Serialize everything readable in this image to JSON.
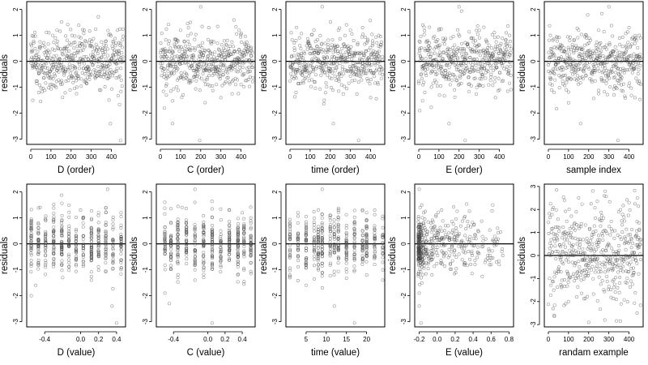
{
  "chart_data": [
    {
      "type": "scatter",
      "xlabel": "D (order)",
      "ylabel": "residuals",
      "xlim": [
        -20,
        470
      ],
      "ylim": [
        -3.2,
        2.3
      ],
      "xticks": [
        0,
        100,
        200,
        300,
        400
      ],
      "xtick_labels": [
        "0",
        "100",
        "200",
        "300",
        "400"
      ],
      "yticks": [
        -3,
        -2,
        -1,
        0,
        1,
        2
      ],
      "ytick_labels": [
        "-3",
        "-2",
        "-1",
        "0",
        "1",
        "2"
      ],
      "reference_line_y": 0,
      "n": 460,
      "x_kind": "index",
      "y_sd": 0.55,
      "series": [
        {
          "x": [
            10,
            40,
            90,
            130,
            205,
            265,
            300,
            395,
            430,
            445
          ],
          "y": [
            -1.5,
            -1.2,
            1.1,
            1.2,
            1.0,
            1.2,
            0.6,
            -2.4,
            1.2,
            -3.05
          ]
        }
      ]
    },
    {
      "type": "scatter",
      "xlabel": "C (order)",
      "ylabel": "residuals",
      "xlim": [
        -20,
        470
      ],
      "ylim": [
        -3.2,
        2.3
      ],
      "xticks": [
        0,
        100,
        200,
        300,
        400
      ],
      "xtick_labels": [
        "0",
        "100",
        "200",
        "300",
        "400"
      ],
      "yticks": [
        -3,
        -2,
        -1,
        0,
        1,
        2
      ],
      "ytick_labels": [
        "-3",
        "-2",
        "-1",
        "0",
        "1",
        "2"
      ],
      "reference_line_y": 0,
      "n": 460,
      "x_kind": "index",
      "y_sd": 0.55,
      "series": [
        {
          "x": [
            20,
            30,
            60,
            100,
            195,
            200,
            240,
            300,
            390,
            440
          ],
          "y": [
            -1.8,
            -1.3,
            -2.4,
            1.2,
            -3.05,
            2.1,
            1.3,
            -1.4,
            1.2,
            -0.4
          ]
        }
      ]
    },
    {
      "type": "scatter",
      "xlabel": "time (order)",
      "ylabel": "residuals",
      "xlim": [
        -20,
        470
      ],
      "ylim": [
        -3.2,
        2.3
      ],
      "xticks": [
        0,
        100,
        200,
        300,
        400
      ],
      "xtick_labels": [
        "0",
        "100",
        "200",
        "300",
        "400"
      ],
      "yticks": [
        -3,
        -2,
        -1,
        0,
        1,
        2
      ],
      "ytick_labels": [
        "-3",
        "-2",
        "-1",
        "0",
        "1",
        "2"
      ],
      "reference_line_y": 0,
      "n": 460,
      "x_kind": "index",
      "y_sd": 0.55,
      "series": [
        {
          "x": [
            30,
            160,
            170,
            215,
            240,
            300,
            340,
            360,
            400,
            440
          ],
          "y": [
            -1.2,
            2.1,
            -1.5,
            -2.4,
            1.2,
            1.2,
            -3.05,
            1.3,
            -1.4,
            1.0
          ]
        }
      ]
    },
    {
      "type": "scatter",
      "xlabel": "E (order)",
      "ylabel": "residuals",
      "xlim": [
        -20,
        470
      ],
      "ylim": [
        -3.2,
        2.3
      ],
      "xticks": [
        0,
        100,
        200,
        300,
        400
      ],
      "xtick_labels": [
        "0",
        "100",
        "200",
        "300",
        "400"
      ],
      "yticks": [
        -3,
        -2,
        -1,
        0,
        1,
        2
      ],
      "ytick_labels": [
        "-3",
        "-2",
        "-1",
        "0",
        "1",
        "2"
      ],
      "reference_line_y": 0,
      "n": 460,
      "x_kind": "index",
      "y_sd": 0.55,
      "series": [
        {
          "x": [
            5,
            20,
            30,
            100,
            150,
            200,
            230,
            300,
            380,
            450
          ],
          "y": [
            -1.9,
            1.4,
            -1.2,
            1.2,
            -2.4,
            2.1,
            -3.05,
            1.2,
            -1.4,
            1.0
          ]
        }
      ]
    },
    {
      "type": "scatter",
      "xlabel": "sample index",
      "ylabel": "residuals",
      "xlim": [
        -20,
        470
      ],
      "ylim": [
        -3.2,
        2.3
      ],
      "xticks": [
        0,
        100,
        200,
        300,
        400
      ],
      "xtick_labels": [
        "0",
        "100",
        "200",
        "300",
        "400"
      ],
      "yticks": [
        -3,
        -2,
        -1,
        0,
        1,
        2
      ],
      "ytick_labels": [
        "-3",
        "-2",
        "-1",
        "0",
        "1",
        "2"
      ],
      "reference_line_y": 0,
      "n": 460,
      "x_kind": "index",
      "y_sd": 0.55,
      "series": [
        {
          "x": [
            10,
            100,
            150,
            160,
            250,
            300,
            345,
            400,
            430,
            450
          ],
          "y": [
            1.0,
            -1.6,
            1.2,
            -2.4,
            1.2,
            2.1,
            -3.05,
            1.3,
            -1.4,
            1.0
          ]
        }
      ]
    },
    {
      "type": "scatter",
      "xlabel": "D (value)",
      "ylabel": "residuals",
      "xlim": [
        -0.6,
        0.5
      ],
      "ylim": [
        -3.2,
        2.3
      ],
      "xticks": [
        -0.4,
        0.0,
        0.2,
        0.4
      ],
      "xtick_labels": [
        "-0.4",
        "0.0",
        "0.2",
        "0.4"
      ],
      "yticks": [
        -3,
        -2,
        -1,
        0,
        1,
        2
      ],
      "ytick_labels": [
        "-3",
        "-2",
        "-1",
        "0",
        "1",
        "2"
      ],
      "reference_line_y": 0,
      "n": 460,
      "x_kind": "discrete",
      "x_levels": [
        -0.55,
        -0.47,
        -0.39,
        -0.3,
        -0.21,
        -0.13,
        -0.05,
        0.03,
        0.12,
        0.2,
        0.28,
        0.36,
        0.45
      ],
      "y_sd": 0.55,
      "series": [
        {
          "x": [
            -0.55,
            -0.5,
            -0.45,
            0.3,
            0.35,
            0.4,
            0.45,
            0.0,
            0.2,
            -0.2
          ],
          "y": [
            -2.0,
            -1.6,
            1.4,
            2.1,
            -2.4,
            -3.05,
            1.2,
            1.3,
            1.2,
            -1.3
          ]
        }
      ]
    },
    {
      "type": "scatter",
      "xlabel": "C (value)",
      "ylabel": "residuals",
      "xlim": [
        -0.6,
        0.55
      ],
      "ylim": [
        -3.2,
        2.3
      ],
      "xticks": [
        -0.4,
        0.0,
        0.2,
        0.4
      ],
      "xtick_labels": [
        "-0.4",
        "0.0",
        "0.2",
        "0.4"
      ],
      "yticks": [
        -3,
        -2,
        -1,
        0,
        1,
        2
      ],
      "ytick_labels": [
        "-3",
        "-2",
        "-1",
        "0",
        "1",
        "2"
      ],
      "reference_line_y": 0,
      "n": 460,
      "x_kind": "discrete",
      "x_levels": [
        -0.5,
        -0.43,
        -0.35,
        -0.25,
        -0.15,
        -0.05,
        0.05,
        0.15,
        0.25,
        0.35,
        0.42,
        0.5
      ],
      "y_sd": 0.55,
      "series": [
        {
          "x": [
            -0.5,
            -0.45,
            -0.3,
            -0.15,
            -0.15,
            0.05,
            0.25,
            0.4,
            -0.35,
            0.5
          ],
          "y": [
            -1.9,
            -2.3,
            1.4,
            2.1,
            -1.4,
            -3.05,
            1.3,
            1.2,
            -1.3,
            1.0
          ]
        }
      ]
    },
    {
      "type": "scatter",
      "xlabel": "time (value)",
      "ylabel": "residuals",
      "xlim": [
        0,
        24.5
      ],
      "ylim": [
        -3.2,
        2.3
      ],
      "xticks": [
        5,
        10,
        15,
        20
      ],
      "xtick_labels": [
        "5",
        "10",
        "15",
        "20"
      ],
      "yticks": [
        -3,
        -2,
        -1,
        0,
        1,
        2
      ],
      "ytick_labels": [
        "-3",
        "-2",
        "-1",
        "0",
        "1",
        "2"
      ],
      "reference_line_y": 0,
      "n": 460,
      "x_kind": "discrete",
      "x_levels": [
        1,
        3,
        5,
        7,
        8,
        9,
        11,
        12,
        13,
        15,
        17,
        19,
        20,
        22,
        24
      ],
      "y_sd": 0.55,
      "series": [
        {
          "x": [
            1,
            3,
            9,
            12,
            13,
            17,
            20,
            22,
            24,
            5
          ],
          "y": [
            -1.2,
            1.2,
            2.1,
            -2.4,
            1.3,
            -3.05,
            1.2,
            1.3,
            -1.4,
            -1.6
          ]
        }
      ]
    },
    {
      "type": "scatter",
      "xlabel": "E (value)",
      "ylabel": "residuals",
      "xlim": [
        -0.25,
        0.85
      ],
      "ylim": [
        -3.2,
        2.3
      ],
      "xticks": [
        -0.2,
        0.0,
        0.2,
        0.4,
        0.6,
        0.8
      ],
      "xtick_labels": [
        "-0.2",
        "0.0",
        "0.2",
        "0.4",
        "0.6",
        "0.8"
      ],
      "yticks": [
        -3,
        -2,
        -1,
        0,
        1,
        2
      ],
      "ytick_labels": [
        "-3",
        "-2",
        "-1",
        "0",
        "1",
        "2"
      ],
      "reference_line_y": 0,
      "n": 460,
      "x_kind": "skewed",
      "y_sd": 0.55,
      "series": [
        {
          "x": [
            -0.2,
            -0.2,
            -0.19,
            -0.18,
            -0.2,
            -0.15,
            0.05,
            0.3,
            0.6,
            0.72
          ],
          "y": [
            2.1,
            -1.9,
            1.4,
            -3.05,
            -2.4,
            1.2,
            1.3,
            1.0,
            -0.8,
            -0.3
          ]
        }
      ]
    },
    {
      "type": "scatter",
      "xlabel": "randam example",
      "ylabel": "residuals",
      "xlim": [
        -20,
        470
      ],
      "ylim": [
        -3.1,
        3.1
      ],
      "xticks": [
        0,
        100,
        200,
        300,
        400
      ],
      "xtick_labels": [
        "0",
        "100",
        "200",
        "300",
        "400"
      ],
      "yticks": [
        -3,
        -2,
        -1,
        0,
        1,
        2,
        3
      ],
      "ytick_labels": [
        "-3",
        "-2",
        "-1",
        "0",
        "1",
        "2",
        "3"
      ],
      "reference_line_y": 0,
      "n": 460,
      "x_kind": "index",
      "y_sd": 1.0,
      "series": [
        {
          "x": [
            20,
            30,
            80,
            100,
            150,
            200,
            220,
            280,
            400,
            440
          ],
          "y": [
            2.0,
            -2.6,
            2.4,
            -2.0,
            2.5,
            -2.9,
            2.8,
            -2.8,
            2.3,
            -2.5
          ]
        }
      ]
    }
  ]
}
